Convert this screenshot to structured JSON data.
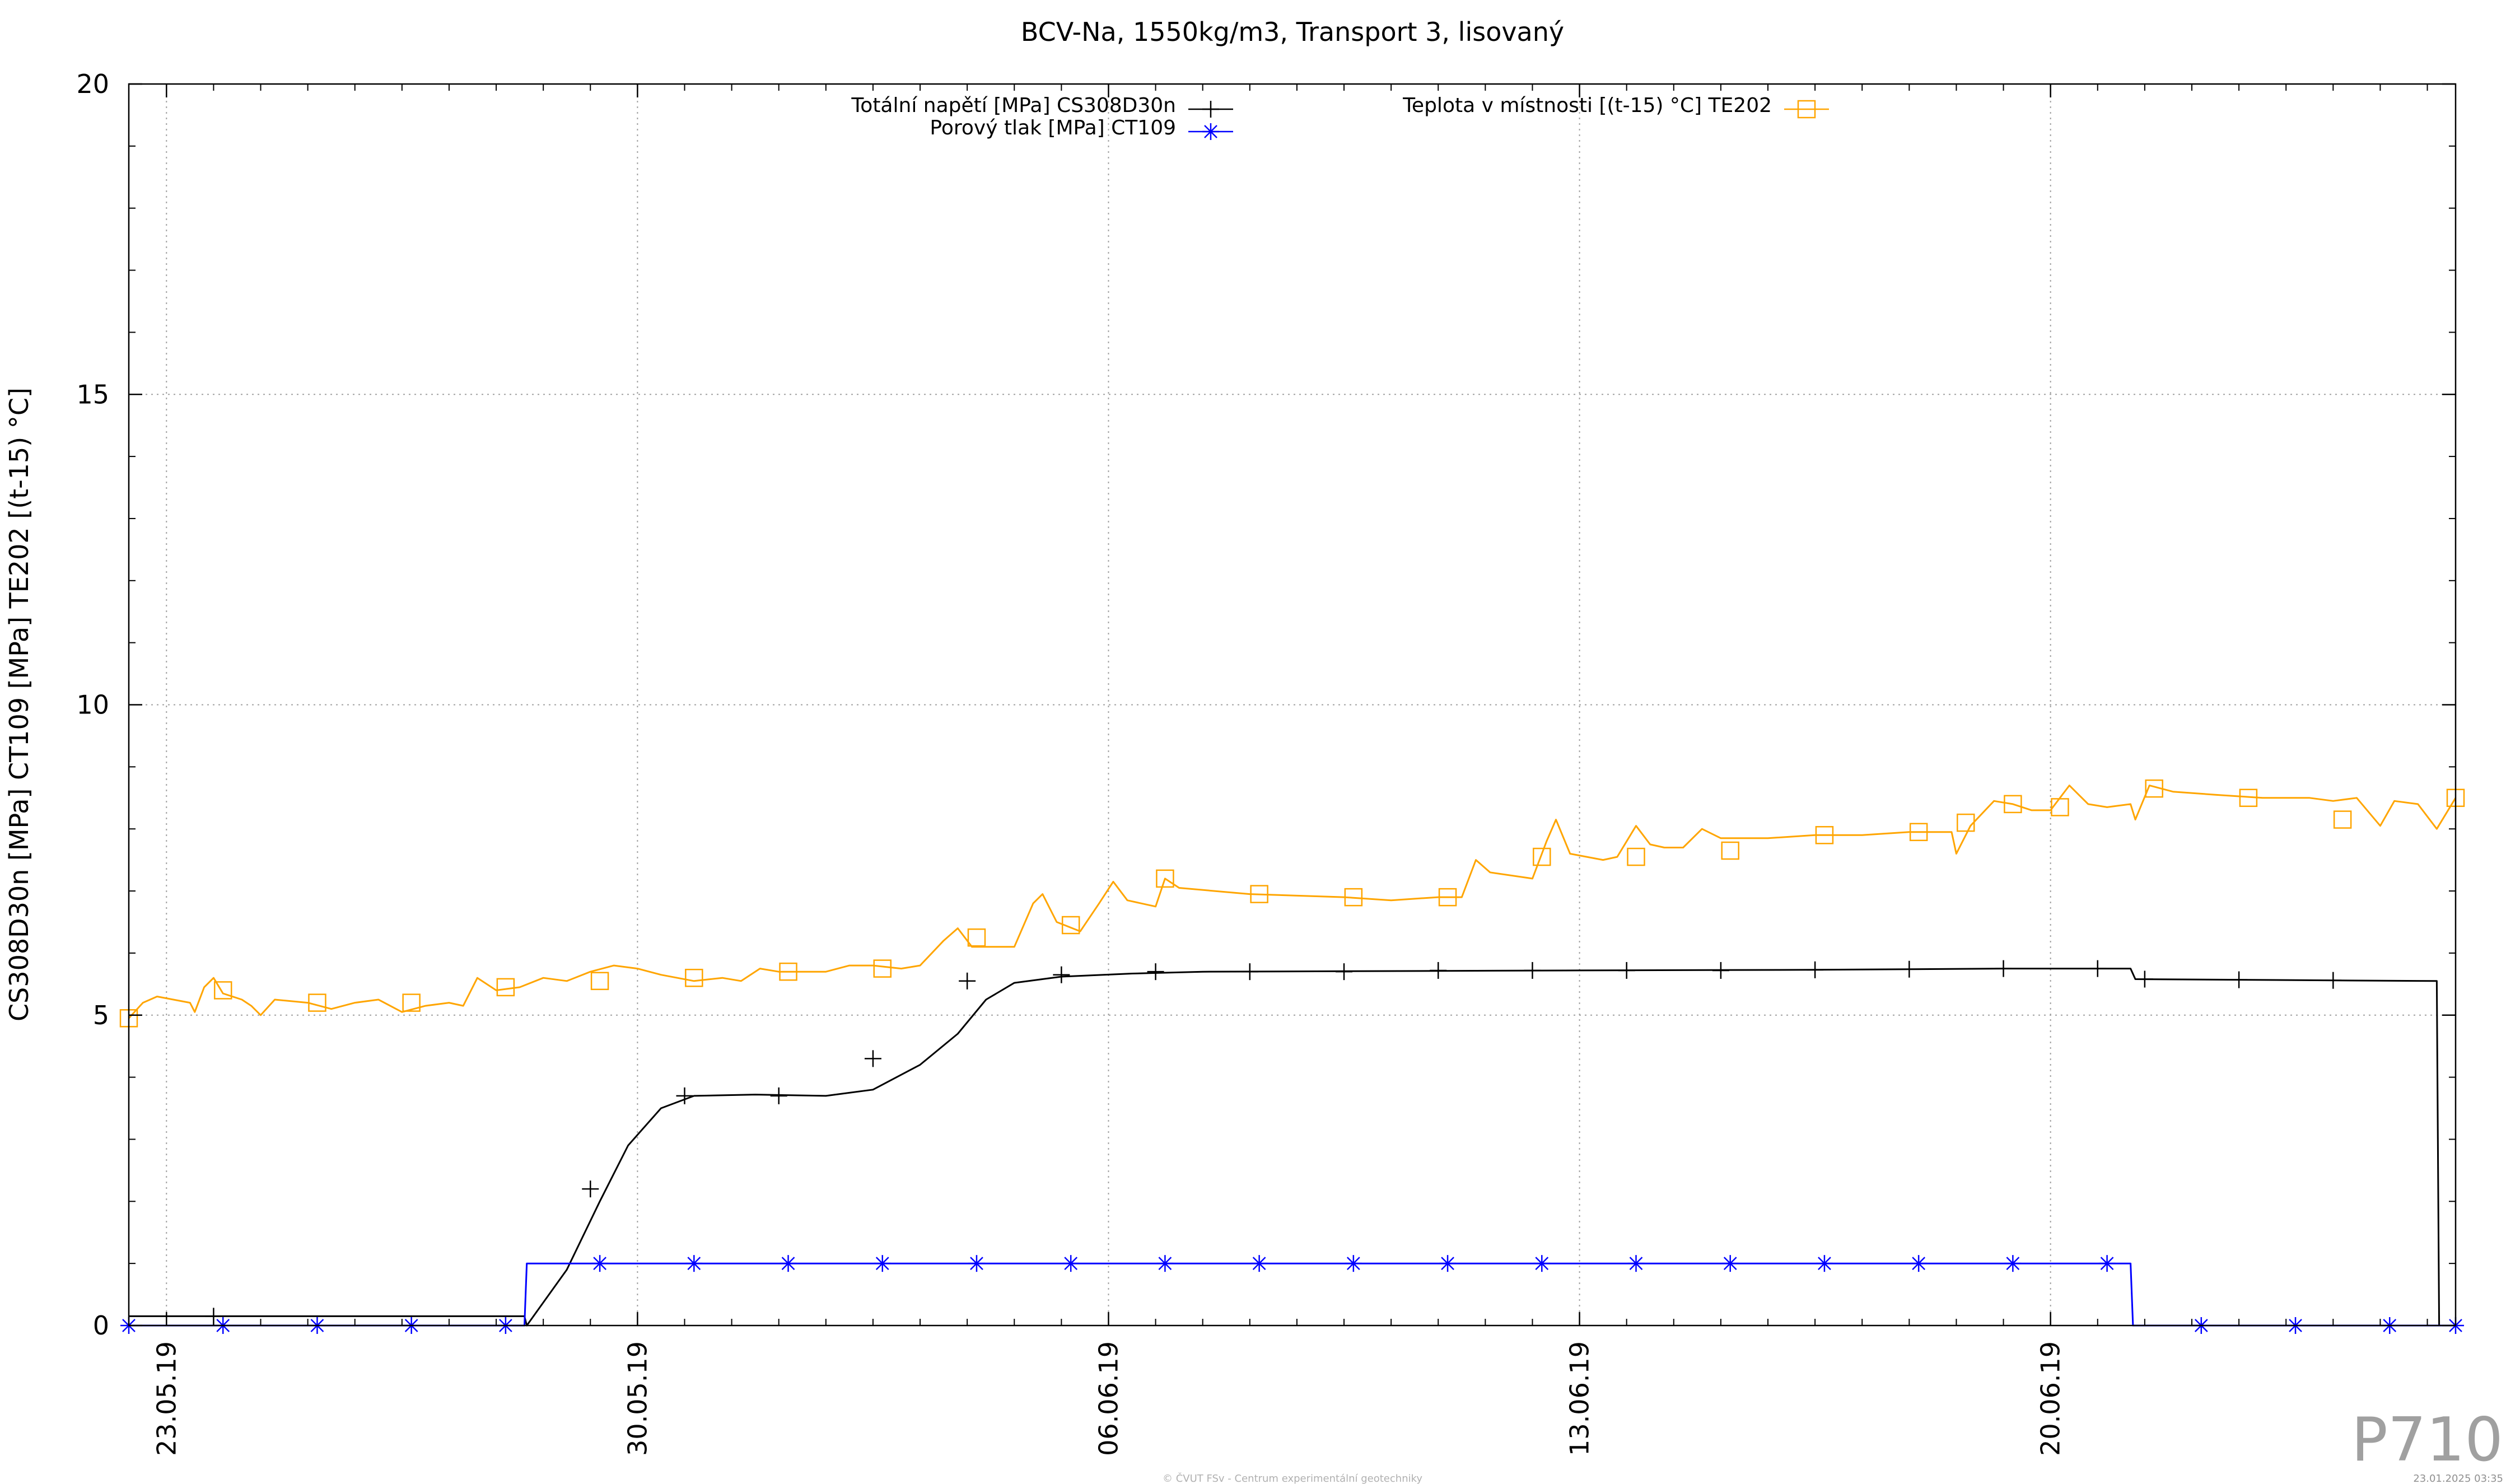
{
  "chart_data": {
    "type": "line",
    "title": "BCV-Na, 1550kg/m3, Transport 3, lisovaný",
    "ylabel": "CS308D30n [MPa] CT109 [MPa] TE202 [(t-15) °C]",
    "xlabel": "",
    "xlim": [
      -0.8,
      48.6
    ],
    "ylim": [
      0,
      20
    ],
    "grid": true,
    "legend_position": "top",
    "x_ticks": [
      {
        "x": 0,
        "label": "23.05.19"
      },
      {
        "x": 10,
        "label": "30.05.19"
      },
      {
        "x": 20,
        "label": "06.06.19"
      },
      {
        "x": 30,
        "label": "13.06.19"
      },
      {
        "x": 40,
        "label": "20.06.19"
      }
    ],
    "y_ticks": [
      0,
      5,
      10,
      15,
      20
    ],
    "series": [
      {
        "name": "Totální napětí [MPa] CS308D30n",
        "color": "#000000",
        "marker": "plus",
        "points": [
          [
            -0.8,
            0.15
          ],
          [
            7.6,
            0.15
          ],
          [
            7.65,
            0.0
          ],
          [
            8.5,
            0.9
          ],
          [
            9.2,
            2.0
          ],
          [
            9.8,
            2.9
          ],
          [
            10.5,
            3.5
          ],
          [
            11.2,
            3.7
          ],
          [
            12.5,
            3.72
          ],
          [
            14.0,
            3.7
          ],
          [
            15.0,
            3.8
          ],
          [
            16.0,
            4.2
          ],
          [
            16.8,
            4.7
          ],
          [
            17.4,
            5.25
          ],
          [
            18.0,
            5.52
          ],
          [
            19.0,
            5.62
          ],
          [
            20.5,
            5.67
          ],
          [
            22.0,
            5.7
          ],
          [
            30.0,
            5.72
          ],
          [
            35.0,
            5.73
          ],
          [
            39.0,
            5.75
          ],
          [
            41.7,
            5.75
          ],
          [
            41.8,
            5.58
          ],
          [
            48.2,
            5.55
          ],
          [
            48.25,
            0.0
          ],
          [
            48.6,
            0.0
          ]
        ],
        "markers": [
          [
            1.0,
            0.15
          ],
          [
            9.0,
            2.2
          ],
          [
            11.0,
            3.7
          ],
          [
            13.0,
            3.7
          ],
          [
            15.0,
            4.3
          ],
          [
            17.0,
            5.55
          ],
          [
            19.0,
            5.65
          ],
          [
            21.0,
            5.7
          ],
          [
            23.0,
            5.7
          ],
          [
            25.0,
            5.7
          ],
          [
            27.0,
            5.72
          ],
          [
            29.0,
            5.72
          ],
          [
            31.0,
            5.72
          ],
          [
            33.0,
            5.72
          ],
          [
            35.0,
            5.73
          ],
          [
            37.0,
            5.74
          ],
          [
            39.0,
            5.75
          ],
          [
            41.0,
            5.75
          ],
          [
            42.0,
            5.58
          ],
          [
            44.0,
            5.57
          ],
          [
            46.0,
            5.56
          ]
        ]
      },
      {
        "name": "Porový tlak [MPa] CT109",
        "color": "#0000ff",
        "marker": "asterisk",
        "points": [
          [
            -0.8,
            0.0
          ],
          [
            7.6,
            0.0
          ],
          [
            7.65,
            1.0
          ],
          [
            41.7,
            1.0
          ],
          [
            41.75,
            0.0
          ],
          [
            48.6,
            0.0
          ]
        ],
        "markers": [
          [
            -0.8,
            0.0
          ],
          [
            1.2,
            0.0
          ],
          [
            3.2,
            0.0
          ],
          [
            5.2,
            0.0
          ],
          [
            7.2,
            0.0
          ],
          [
            9.2,
            1.0
          ],
          [
            11.2,
            1.0
          ],
          [
            13.2,
            1.0
          ],
          [
            15.2,
            1.0
          ],
          [
            17.2,
            1.0
          ],
          [
            19.2,
            1.0
          ],
          [
            21.2,
            1.0
          ],
          [
            23.2,
            1.0
          ],
          [
            25.2,
            1.0
          ],
          [
            27.2,
            1.0
          ],
          [
            29.2,
            1.0
          ],
          [
            31.2,
            1.0
          ],
          [
            33.2,
            1.0
          ],
          [
            35.2,
            1.0
          ],
          [
            37.2,
            1.0
          ],
          [
            39.2,
            1.0
          ],
          [
            41.2,
            1.0
          ],
          [
            43.2,
            0.0
          ],
          [
            45.2,
            0.0
          ],
          [
            47.2,
            0.0
          ],
          [
            48.6,
            0.0
          ]
        ]
      },
      {
        "name": "Teplota v místnosti [(t-15) °C] TE202",
        "color": "#ffa500",
        "marker": "square",
        "points": [
          [
            -0.8,
            4.95
          ],
          [
            -0.5,
            5.2
          ],
          [
            -0.2,
            5.3
          ],
          [
            0.5,
            5.2
          ],
          [
            0.6,
            5.05
          ],
          [
            0.8,
            5.45
          ],
          [
            1.0,
            5.6
          ],
          [
            1.2,
            5.35
          ],
          [
            1.6,
            5.25
          ],
          [
            1.8,
            5.15
          ],
          [
            2.0,
            5.0
          ],
          [
            2.3,
            5.25
          ],
          [
            3.0,
            5.2
          ],
          [
            3.5,
            5.1
          ],
          [
            4.0,
            5.2
          ],
          [
            4.5,
            5.25
          ],
          [
            5.0,
            5.05
          ],
          [
            5.5,
            5.15
          ],
          [
            6.0,
            5.2
          ],
          [
            6.3,
            5.15
          ],
          [
            6.6,
            5.6
          ],
          [
            7.0,
            5.4
          ],
          [
            7.5,
            5.45
          ],
          [
            8.0,
            5.6
          ],
          [
            8.5,
            5.55
          ],
          [
            9.0,
            5.7
          ],
          [
            9.5,
            5.8
          ],
          [
            10.0,
            5.75
          ],
          [
            10.5,
            5.65
          ],
          [
            11.2,
            5.55
          ],
          [
            11.8,
            5.6
          ],
          [
            12.2,
            5.55
          ],
          [
            12.6,
            5.75
          ],
          [
            13.0,
            5.7
          ],
          [
            14.0,
            5.7
          ],
          [
            14.5,
            5.8
          ],
          [
            15.0,
            5.8
          ],
          [
            15.6,
            5.75
          ],
          [
            16.0,
            5.8
          ],
          [
            16.5,
            6.2
          ],
          [
            16.8,
            6.4
          ],
          [
            17.1,
            6.1
          ],
          [
            18.0,
            6.1
          ],
          [
            18.4,
            6.8
          ],
          [
            18.6,
            6.95
          ],
          [
            18.9,
            6.5
          ],
          [
            19.4,
            6.35
          ],
          [
            19.8,
            6.8
          ],
          [
            20.1,
            7.15
          ],
          [
            20.4,
            6.85
          ],
          [
            21.0,
            6.75
          ],
          [
            21.2,
            7.2
          ],
          [
            21.5,
            7.05
          ],
          [
            23.0,
            6.95
          ],
          [
            25.0,
            6.9
          ],
          [
            26.0,
            6.85
          ],
          [
            27.0,
            6.9
          ],
          [
            27.5,
            6.9
          ],
          [
            27.8,
            7.5
          ],
          [
            28.1,
            7.3
          ],
          [
            29.0,
            7.2
          ],
          [
            29.3,
            7.8
          ],
          [
            29.5,
            8.15
          ],
          [
            29.8,
            7.6
          ],
          [
            30.5,
            7.5
          ],
          [
            30.8,
            7.55
          ],
          [
            31.2,
            8.05
          ],
          [
            31.5,
            7.75
          ],
          [
            31.8,
            7.7
          ],
          [
            32.2,
            7.7
          ],
          [
            32.6,
            8.0
          ],
          [
            33.0,
            7.85
          ],
          [
            34.0,
            7.85
          ],
          [
            35.0,
            7.9
          ],
          [
            36.0,
            7.9
          ],
          [
            37.0,
            7.95
          ],
          [
            37.9,
            7.95
          ],
          [
            38.0,
            7.6
          ],
          [
            38.3,
            8.05
          ],
          [
            38.8,
            8.45
          ],
          [
            39.2,
            8.4
          ],
          [
            39.6,
            8.3
          ],
          [
            40.0,
            8.3
          ],
          [
            40.4,
            8.7
          ],
          [
            40.8,
            8.4
          ],
          [
            41.2,
            8.35
          ],
          [
            41.7,
            8.4
          ],
          [
            41.8,
            8.15
          ],
          [
            42.1,
            8.7
          ],
          [
            42.6,
            8.6
          ],
          [
            43.5,
            8.55
          ],
          [
            44.5,
            8.5
          ],
          [
            45.5,
            8.5
          ],
          [
            46.0,
            8.45
          ],
          [
            46.5,
            8.5
          ],
          [
            47.0,
            8.05
          ],
          [
            47.3,
            8.45
          ],
          [
            47.8,
            8.4
          ],
          [
            48.2,
            8.0
          ],
          [
            48.6,
            8.5
          ]
        ],
        "markers": [
          [
            -0.8,
            4.95
          ],
          [
            1.2,
            5.4
          ],
          [
            3.2,
            5.2
          ],
          [
            5.2,
            5.2
          ],
          [
            7.2,
            5.45
          ],
          [
            9.2,
            5.55
          ],
          [
            11.2,
            5.6
          ],
          [
            13.2,
            5.7
          ],
          [
            15.2,
            5.75
          ],
          [
            17.2,
            6.25
          ],
          [
            19.2,
            6.45
          ],
          [
            21.2,
            7.2
          ],
          [
            23.2,
            6.95
          ],
          [
            25.2,
            6.9
          ],
          [
            27.2,
            6.9
          ],
          [
            29.2,
            7.55
          ],
          [
            31.2,
            7.55
          ],
          [
            33.2,
            7.65
          ],
          [
            35.2,
            7.9
          ],
          [
            37.2,
            7.95
          ],
          [
            38.2,
            8.1
          ],
          [
            39.2,
            8.4
          ],
          [
            40.2,
            8.35
          ],
          [
            42.2,
            8.65
          ],
          [
            44.2,
            8.5
          ],
          [
            46.2,
            8.15
          ],
          [
            48.6,
            8.5
          ]
        ]
      }
    ]
  },
  "badge": {
    "text": "P710",
    "color": "#a0a0a0"
  },
  "footer": {
    "copyright": "© ČVUT FSv - Centrum experimentální geotechniky",
    "timestamp": "23.01.2025 03:35"
  }
}
